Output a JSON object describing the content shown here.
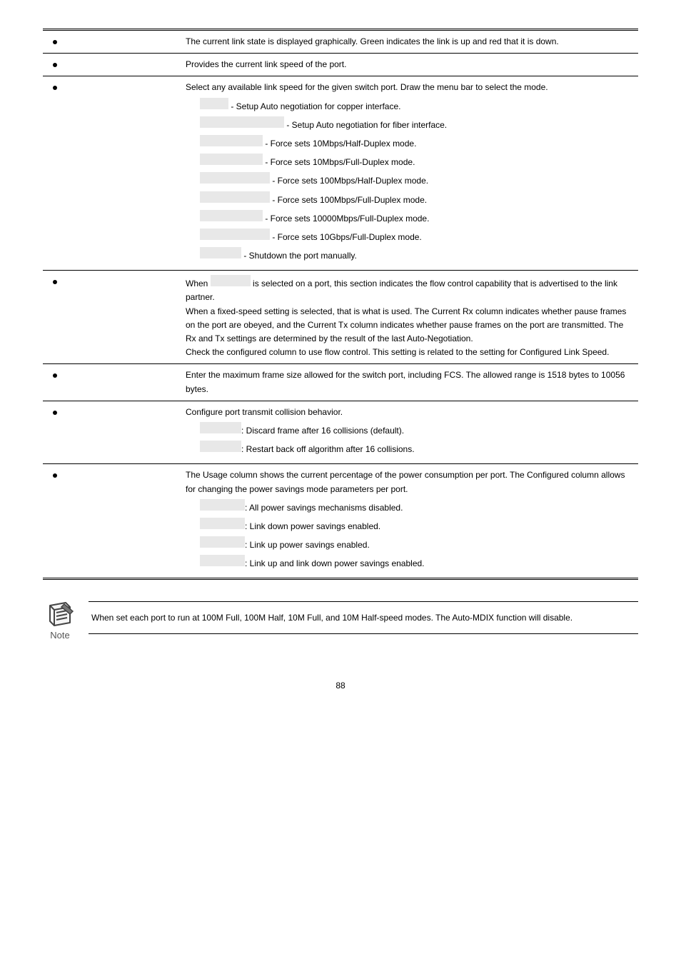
{
  "rows": [
    {
      "bullet": true,
      "lines": [
        {
          "plain": "The current link state is displayed graphically. Green indicates the link is up and red that it is down."
        }
      ]
    },
    {
      "bullet": true,
      "lines": [
        {
          "plain": "Provides the current link speed of the port."
        }
      ]
    },
    {
      "bullet": true,
      "lines": [
        {
          "plain": "Select any available link speed for the given switch port. Draw the menu bar to select the mode."
        },
        {
          "sub": true,
          "grey_w": 32,
          "after": " - Setup Auto negotiation for copper interface."
        },
        {
          "sub": true,
          "grey_w": 110,
          "after": " - Setup Auto negotiation for fiber interface."
        },
        {
          "sub": true,
          "grey_w": 80,
          "after": " - Force sets 10Mbps/Half-Duplex mode."
        },
        {
          "sub": true,
          "grey_w": 80,
          "after": " - Force sets 10Mbps/Full-Duplex mode."
        },
        {
          "sub": true,
          "grey_w": 90,
          "after": " - Force sets 100Mbps/Half-Duplex mode."
        },
        {
          "sub": true,
          "grey_w": 90,
          "after": " - Force sets 100Mbps/Full-Duplex mode."
        },
        {
          "sub": true,
          "grey_w": 80,
          "after": " - Force sets 10000Mbps/Full-Duplex mode."
        },
        {
          "sub": true,
          "grey_w": 90,
          "after": " - Force sets 10Gbps/Full-Duplex mode."
        },
        {
          "sub": true,
          "grey_w": 50,
          "after": " - Shutdown the port manually."
        }
      ]
    },
    {
      "bullet": true,
      "lines": [
        {
          "prefix": "When ",
          "grey_w": 48,
          "after": " is selected on a port, this section indicates the flow control capability that is advertised to the link partner."
        },
        {
          "plain": "When a fixed-speed setting is selected, that is what is used. The Current Rx column indicates whether pause frames on the port are obeyed, and the Current Tx column indicates whether pause frames on the port are transmitted. The Rx and Tx settings are determined by the result of the last Auto-Negotiation."
        },
        {
          "plain": "Check the configured column to use flow control. This setting is related to the setting for Configured Link Speed."
        }
      ]
    },
    {
      "bullet": true,
      "lines": [
        {
          "plain": "Enter the maximum frame size allowed for the switch port, including FCS. The allowed range is 1518 bytes to 10056 bytes."
        }
      ]
    },
    {
      "bullet": true,
      "lines": [
        {
          "plain": "Configure port transmit collision behavior."
        },
        {
          "sub": true,
          "grey_w": 50,
          "after": ": Discard frame after 16 collisions (default)."
        },
        {
          "sub": true,
          "grey_w": 50,
          "after": ": Restart back off algorithm after 16 collisions."
        }
      ]
    },
    {
      "bullet": true,
      "lines": [
        {
          "plain": "The Usage column shows the current percentage of the power consumption per port. The Configured column allows for changing the power savings mode parameters per port."
        },
        {
          "sub": true,
          "grey_w": 55,
          "after": ": All power savings mechanisms disabled."
        },
        {
          "sub": true,
          "grey_w": 55,
          "after": ": Link down power savings enabled."
        },
        {
          "sub": true,
          "grey_w": 55,
          "after": ": Link up power savings enabled."
        },
        {
          "sub": true,
          "grey_w": 55,
          "after": ": Link up and link down power savings enabled."
        }
      ]
    }
  ],
  "note": {
    "label": "Note",
    "text": "When set each port to run at 100M Full, 100M Half, 10M Full, and 10M Half-speed modes. The Auto-MDIX function will disable."
  },
  "page_number": "88"
}
